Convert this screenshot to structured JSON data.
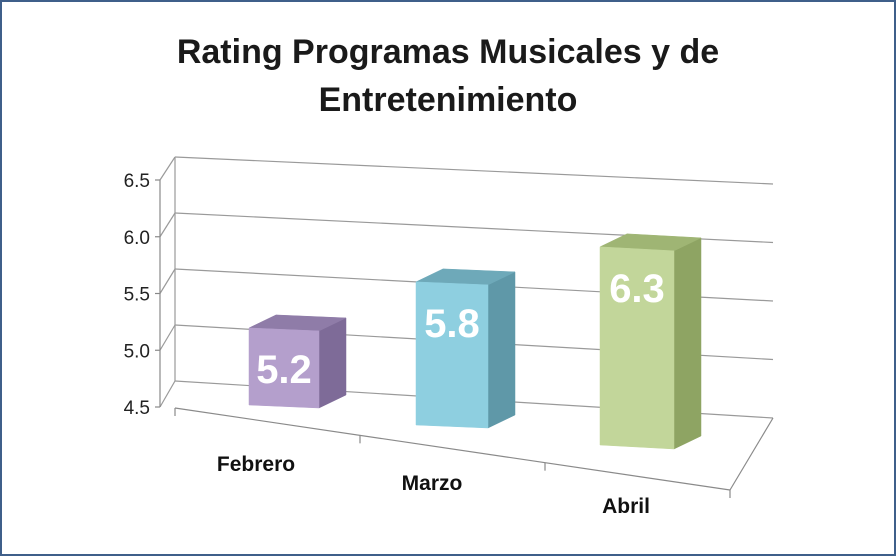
{
  "chart_data": {
    "type": "bar",
    "title_lines": [
      "Rating Programas Musicales y de",
      "Entretenimiento"
    ],
    "categories": [
      "Febrero",
      "Marzo",
      "Abril"
    ],
    "values": [
      5.2,
      5.8,
      6.3
    ],
    "value_labels": [
      "5.2",
      "5.8",
      "6.3"
    ],
    "yticks": [
      "4.5",
      "5.0",
      "5.5",
      "6.0",
      "6.5"
    ],
    "ylim": [
      4.5,
      6.5
    ],
    "xlabel": "",
    "ylabel": "",
    "grid": true,
    "legend": "none",
    "colors": {
      "front": [
        "#b49fcc",
        "#8ecfe0",
        "#c2d69a"
      ],
      "side": [
        "#7e6b98",
        "#5f98a8",
        "#8ea463"
      ],
      "top": [
        "#8f7ca8",
        "#6ea9b9",
        "#9fb574"
      ]
    }
  }
}
